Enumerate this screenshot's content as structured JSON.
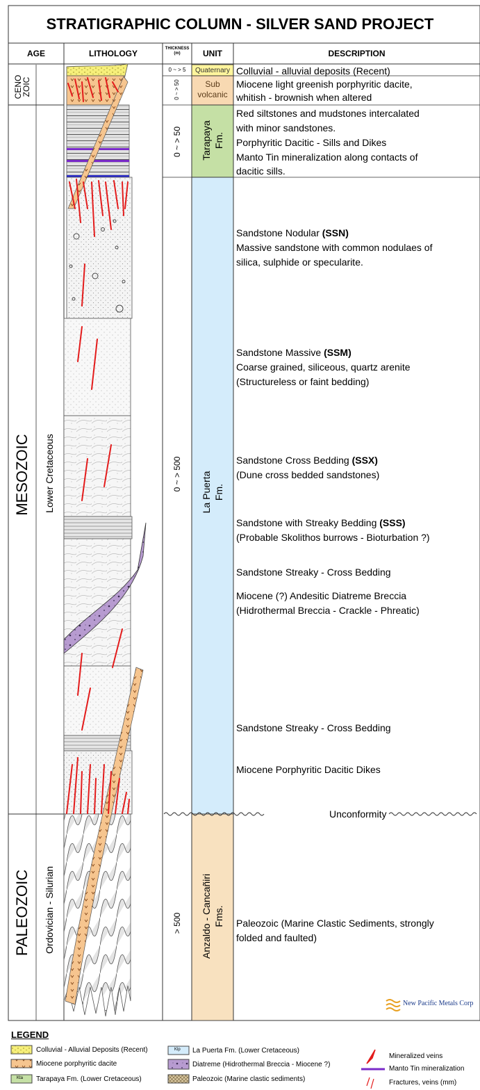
{
  "title": "STRATIGRAPHIC COLUMN - SILVER SAND PROJECT",
  "headers": {
    "age": "AGE",
    "lithology": "LITHOLOGY",
    "thickness": "THICKNESS",
    "thickness_unit": "(m)",
    "unit": "UNIT",
    "description": "DESCRIPTION"
  },
  "eras": {
    "cenozoic_line1": "CENO",
    "cenozoic_line2": "ZOIC",
    "mesozoic": "MESOZOIC",
    "mesozoic_period": "Lower Cretaceous",
    "paleozoic": "PALEOZOIC",
    "paleozoic_period": "Ordovician - Silurian"
  },
  "thickness": {
    "quaternary": "0 ~ > 5",
    "subvolcanic": "0 ~ > 50",
    "tarapaya": "0 ~ > 50",
    "la_puerta": "0 ~ > 500",
    "anzaldo": "> 500"
  },
  "units": {
    "quaternary": "Quaternary",
    "subvolcanic_line1": "Sub",
    "subvolcanic_line2": "volcanic",
    "tarapaya_line1": "Tarapaya",
    "tarapaya_line2": "Fm.",
    "la_puerta_line1": "La Puerta",
    "la_puerta_line2": "Fm.",
    "anzaldo_line1": "Anzaldo - Cancañiri",
    "anzaldo_line2": "Fms."
  },
  "descriptions": {
    "colluvial": "Colluvial - alluvial deposits (Recent)",
    "dacite_l1": "Miocene light greenish porphyritic dacite,",
    "dacite_l2": "whitish - brownish when altered",
    "tarapaya_l1": "Red siltstones and mudstones intercalated",
    "tarapaya_l2": "with minor sandstones.",
    "tarapaya_l3": "Porphyritic Dacitic - Sills and Dikes",
    "tarapaya_l4": "Manto Tin mineralization along contacts of",
    "tarapaya_l5": "dacitic sills.",
    "ssn_title": "Sandstone Nodular ",
    "ssn_code": "(SSN)",
    "ssn_l2": "Massive sandstone with common nodulaes of",
    "ssn_l3": "silica, sulphide or specularite.",
    "ssm_title": "Sandstone Massive ",
    "ssm_code": "(SSM)",
    "ssm_l2": "Coarse grained, siliceous, quartz arenite",
    "ssm_l3": "(Structureless or faint bedding)",
    "ssx_title": "Sandstone Cross Bedding ",
    "ssx_code": "(SSX)",
    "ssx_l2": "(Dune cross bedded sandstones)",
    "sss_title": "Sandstone with Streaky Bedding ",
    "sss_code": "(SSS)",
    "sss_l2": "(Probable Skolithos burrows - Bioturbation ?)",
    "streaky1": "Sandstone Streaky - Cross Bedding",
    "breccia_l1": "Miocene (?) Andesitic Diatreme Breccia",
    "breccia_l2": "(Hidrothermal Breccia - Crackle - Phreatic)",
    "streaky2": "Sandstone Streaky - Cross Bedding",
    "dikes": "Miocene Porphyritic Dacitic Dikes",
    "unconformity": "Unconformity",
    "paleozoic_l1": "Paleozoic (Marine Clastic Sediments, strongly",
    "paleozoic_l2": "folded and faulted)"
  },
  "company": "New Pacific Metals Corp",
  "legend": {
    "title": "LEGEND",
    "colluvial": "Colluvial - Alluvial Deposits (Recent)",
    "dacite": "Miocene porphyritic dacite",
    "tarapaya": "Tarapaya Fm. (Lower Cretaceous)",
    "la_puerta": "La Puerta Fm. (Lower Cretaceous)",
    "diatreme": "Diatreme (Hidrothermal Breccia - Miocene ?)",
    "paleozoic": "Paleozoic (Marine clastic sediments)",
    "veins": "Mineralized veins",
    "manto": "Manto Tin mineralization",
    "fractures": "Fractures, veins (mm)",
    "swatch_tarapaya": "Kta",
    "swatch_la_puerta": "Klp"
  },
  "colors": {
    "quaternary": "#fff59d",
    "subvolcanic": "#f8d9b2",
    "tarapaya": "#c5e0a5",
    "la_puerta": "#d4ecfb",
    "anzaldo": "#f8e1bf",
    "diatreme": "#b79bd0",
    "vein": "#e31b1b",
    "manto": "#7a2bc9"
  }
}
